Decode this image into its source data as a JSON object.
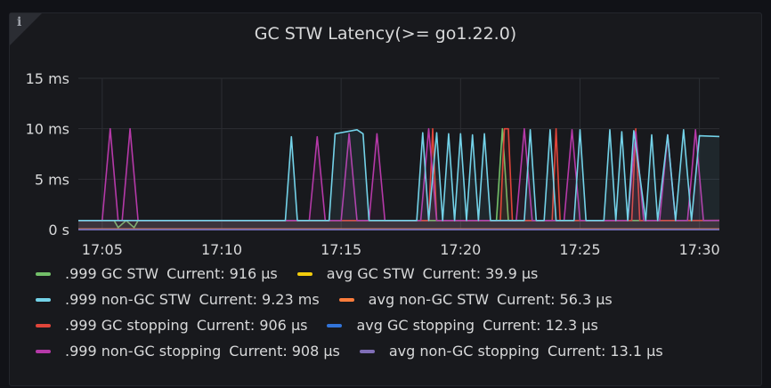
{
  "panel": {
    "title": "GC STW Latency(>= go1.22.0)",
    "info_icon": "info-icon",
    "info_glyph": "i"
  },
  "chart_data": {
    "type": "line",
    "title": "GC STW Latency(>= go1.22.0)",
    "xlabel": "",
    "ylabel": "",
    "y_unit": "ms",
    "ylim": [
      0,
      15
    ],
    "y_ticks": [
      "0 s",
      "5 ms",
      "10 ms",
      "15 ms"
    ],
    "y_tick_values": [
      0,
      5,
      10,
      15
    ],
    "xlim": [
      "17:04:00",
      "17:30:50"
    ],
    "x_ticks": [
      "17:05",
      "17:10",
      "17:15",
      "17:20",
      "17:25",
      "17:30"
    ],
    "x_tick_values": [
      "17:05:00",
      "17:10:00",
      "17:15:00",
      "17:20:00",
      "17:25:00",
      "17:30:00"
    ],
    "grid": true,
    "legend_position": "bottom",
    "series": [
      {
        "name": ".999 GC STW",
        "current": "916 µs",
        "color": "#73bf69",
        "x": [
          "17:04:00",
          "17:05:30",
          "17:05:40",
          "17:06:00",
          "17:06:20",
          "17:06:30",
          "17:21:30",
          "17:21:45",
          "17:22:00",
          "17:30:50"
        ],
        "y": [
          0.9,
          0.9,
          0.2,
          0.9,
          0.2,
          0.9,
          0.9,
          10.0,
          0.9,
          0.9
        ]
      },
      {
        "name": "avg GC STW",
        "current": "39.9 µs",
        "color": "#f2cc0c",
        "x": [
          "17:04:00",
          "17:30:50"
        ],
        "y": [
          0.04,
          0.04
        ]
      },
      {
        "name": ".999 non-GC STW",
        "current": "9.23 ms",
        "color": "#73d2e8",
        "x": [
          "17:04:00",
          "17:04:30",
          "17:05:00",
          "17:05:20",
          "17:05:40",
          "17:06:10",
          "17:06:40",
          "17:07:10",
          "17:07:40",
          "17:08:20",
          "17:09:20",
          "17:09:40",
          "17:10:00",
          "17:12:40",
          "17:12:55",
          "17:13:10",
          "17:14:30",
          "17:14:45",
          "17:15:40",
          "17:15:55",
          "17:16:10",
          "17:18:10",
          "17:18:25",
          "17:18:40",
          "17:19:00",
          "17:19:15",
          "17:19:30",
          "17:19:45",
          "17:20:00",
          "17:20:15",
          "17:20:30",
          "17:20:45",
          "17:21:00",
          "17:21:15",
          "17:21:30",
          "17:22:40",
          "17:22:55",
          "17:23:10",
          "17:23:30",
          "17:23:45",
          "17:24:00",
          "17:24:45",
          "17:25:00",
          "17:25:15",
          "17:26:00",
          "17:26:15",
          "17:26:30",
          "17:26:45",
          "17:27:00",
          "17:27:15",
          "17:27:45",
          "17:28:00",
          "17:28:15",
          "17:28:40",
          "17:29:00",
          "17:29:20",
          "17:29:40",
          "17:30:00",
          "17:30:50"
        ],
        "y": [
          0.9,
          0.9,
          0.9,
          0.9,
          0.9,
          0.9,
          0.9,
          0.9,
          0.9,
          0.9,
          0.9,
          0.9,
          0.9,
          0.9,
          9.2,
          0.9,
          0.9,
          9.5,
          9.9,
          9.5,
          0.9,
          0.9,
          9.6,
          0.9,
          9.6,
          0.9,
          9.5,
          0.9,
          9.5,
          0.9,
          9.4,
          0.9,
          9.5,
          0.9,
          0.9,
          0.9,
          9.9,
          0.9,
          0.9,
          9.9,
          0.9,
          0.9,
          9.9,
          0.9,
          0.9,
          9.9,
          0.9,
          9.7,
          0.9,
          9.8,
          0.9,
          9.4,
          0.9,
          9.4,
          0.9,
          9.9,
          0.9,
          9.3,
          9.23
        ]
      },
      {
        "name": "avg non-GC STW",
        "current": "56.3 µs",
        "color": "#ff7d3c",
        "x": [
          "17:04:00",
          "17:30:50"
        ],
        "y": [
          0.06,
          0.06
        ]
      },
      {
        "name": ".999 GC stopping",
        "current": "906 µs",
        "color": "#e0453a",
        "x": [
          "17:04:00",
          "17:18:40",
          "17:18:50",
          "17:19:00",
          "17:21:40",
          "17:21:50",
          "17:22:00",
          "17:22:10",
          "17:23:50",
          "17:24:00",
          "17:24:10",
          "17:27:10",
          "17:27:20",
          "17:27:30",
          "17:30:50"
        ],
        "y": [
          0.9,
          0.9,
          10.0,
          0.9,
          0.9,
          10.0,
          10.0,
          0.9,
          0.9,
          10.0,
          0.9,
          0.9,
          10.0,
          0.9,
          0.906
        ]
      },
      {
        "name": "avg GC stopping",
        "current": "12.3 µs",
        "color": "#3274d9",
        "x": [
          "17:04:00",
          "17:30:50"
        ],
        "y": [
          0.01,
          0.01
        ]
      },
      {
        "name": ".999 non-GC stopping",
        "current": "908 µs",
        "color": "#b539a8",
        "x": [
          "17:04:00",
          "17:05:00",
          "17:05:20",
          "17:05:40",
          "17:05:50",
          "17:06:10",
          "17:06:30",
          "17:13:40",
          "17:14:00",
          "17:14:20",
          "17:15:00",
          "17:15:20",
          "17:15:40",
          "17:16:10",
          "17:16:30",
          "17:16:50",
          "17:18:20",
          "17:18:40",
          "17:19:00",
          "17:22:20",
          "17:22:40",
          "17:23:00",
          "17:24:20",
          "17:24:40",
          "17:25:00",
          "17:27:00",
          "17:27:20",
          "17:27:40",
          "17:28:20",
          "17:28:40",
          "17:29:00",
          "17:29:30",
          "17:29:50",
          "17:30:10",
          "17:30:50"
        ],
        "y": [
          0.9,
          0.9,
          10.0,
          0.9,
          0.9,
          10.0,
          0.9,
          0.9,
          9.2,
          0.9,
          0.9,
          9.5,
          0.9,
          0.9,
          9.5,
          0.9,
          0.9,
          10.0,
          0.9,
          0.9,
          10.0,
          0.9,
          0.9,
          9.9,
          0.9,
          0.9,
          9.7,
          0.9,
          0.9,
          9.4,
          0.9,
          0.9,
          9.9,
          0.9,
          0.908
        ]
      },
      {
        "name": "avg non-GC stopping",
        "current": "13.1 µs",
        "color": "#806eb7",
        "x": [
          "17:04:00",
          "17:30:50"
        ],
        "y": [
          0.013,
          0.013
        ]
      }
    ]
  },
  "legend": {
    "current_prefix": "Current:",
    "rows": [
      [
        {
          "label": ".999 GC STW",
          "current": "916 µs",
          "color": "#73bf69"
        },
        {
          "label": "avg GC STW",
          "current": "39.9 µs",
          "color": "#f2cc0c"
        }
      ],
      [
        {
          "label": ".999 non-GC STW",
          "current": "9.23 ms",
          "color": "#73d2e8"
        },
        {
          "label": "avg non-GC STW",
          "current": "56.3 µs",
          "color": "#ff7d3c"
        }
      ],
      [
        {
          "label": ".999 GC stopping",
          "current": "906 µs",
          "color": "#e0453a"
        },
        {
          "label": "avg GC stopping",
          "current": "12.3 µs",
          "color": "#3274d9"
        }
      ],
      [
        {
          "label": ".999 non-GC stopping",
          "current": "908 µs",
          "color": "#b539a8"
        },
        {
          "label": "avg non-GC stopping",
          "current": "13.1 µs",
          "color": "#806eb7"
        }
      ]
    ]
  }
}
